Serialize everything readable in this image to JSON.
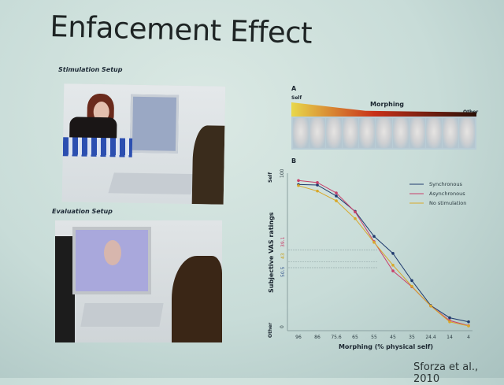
{
  "slide": {
    "title": "Enfacement Effect",
    "citation": "Sforza et al., 2010",
    "stimulation_caption": "Stimulation Setup",
    "evaluation_caption": "Evaluation Setup"
  },
  "panel_a": {
    "label": "A",
    "left_label": "Self",
    "center_label": "Morphing",
    "right_label": "Other",
    "gradient_colors": [
      "#e8d84a",
      "#c8301a",
      "#2a1008"
    ],
    "face_count": 11
  },
  "chart_data": {
    "type": "line",
    "panel_label": "B",
    "xlabel": "Morphing (% physical self)",
    "ylabel": "Subjective VAS ratings",
    "y_top_label": "Self",
    "y_bottom_label": "Other",
    "ylim": [
      0,
      100
    ],
    "y_ticks": [
      "0",
      "100"
    ],
    "categories": [
      "96",
      "86",
      "75.6",
      "65",
      "55",
      "45",
      "35",
      "24.4",
      "14",
      "4"
    ],
    "legend_position": "top-right",
    "series": [
      {
        "name": "Synchronous",
        "color": "#1f3a6e",
        "values": [
          92.7,
          92.4,
          85.3,
          75.4,
          59.3,
          48.3,
          30.8,
          14.7,
          6.8,
          4.2
        ]
      },
      {
        "name": "Asynchronous",
        "color": "#c8406a",
        "values": [
          95.3,
          94.0,
          87.3,
          75.0,
          55.9,
          37.0,
          26.8,
          14.4,
          5.0,
          1.7
        ]
      },
      {
        "name": "No stimulation",
        "color": "#d8a82a",
        "values": [
          92.0,
          88.5,
          82.2,
          70.7,
          55.4,
          40.7,
          27.1,
          14.4,
          4.2,
          1.5
        ]
      }
    ],
    "annotations": [
      {
        "text": "50.5",
        "value": 50.5,
        "color": "#3a5a90"
      },
      {
        "text": "43",
        "value": 43,
        "color": "#c8a020"
      },
      {
        "text": "39.1",
        "value": 39.1,
        "color": "#c8406a"
      }
    ]
  }
}
